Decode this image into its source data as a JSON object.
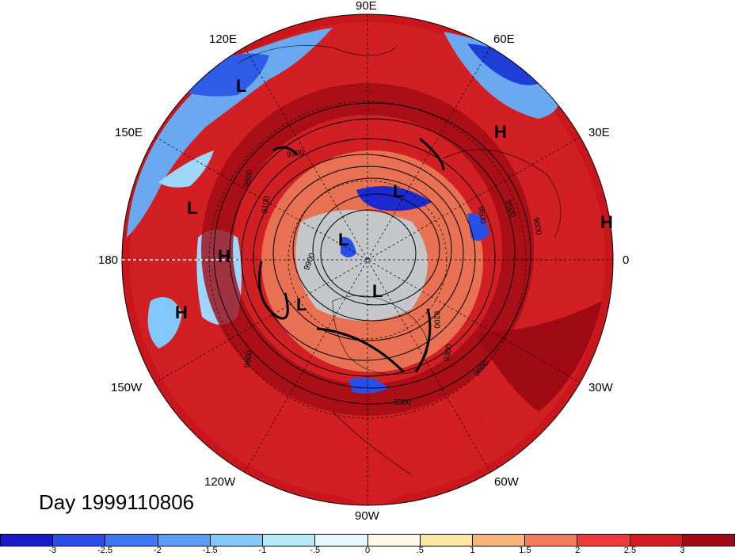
{
  "title": "Day 1999110806",
  "longitude_labels": {
    "n90e": "90E",
    "n60e": "60E",
    "n30e": "30E",
    "n0": "0",
    "n30w": "30W",
    "n60w": "60W",
    "n90w": "90W",
    "n120w": "120W",
    "n150w": "150W",
    "n180": "180",
    "n150e": "150E",
    "n120e": "120E"
  },
  "pressure_systems": [
    {
      "label": "L"
    },
    {
      "label": "H"
    },
    {
      "label": "L"
    },
    {
      "label": "H"
    },
    {
      "label": "H"
    },
    {
      "label": "H"
    },
    {
      "label": "L"
    },
    {
      "label": "L"
    },
    {
      "label": "L"
    },
    {
      "label": "L"
    }
  ],
  "contour_labels": [
    "9300",
    "9100",
    "9500",
    "9600",
    "9500",
    "9600",
    "9200",
    "9300",
    "9600",
    "9500",
    "9600",
    "9900"
  ],
  "colorbar": {
    "colors": [
      "#1a1ac8",
      "#2850e6",
      "#3c78f0",
      "#5a9ef5",
      "#82c8fa",
      "#b4ecfc",
      "#e6f8ff",
      "#fffae6",
      "#fde6a0",
      "#f9b478",
      "#f57c5a",
      "#ec3c37",
      "#d21e23",
      "#a00a14"
    ],
    "ticks": [
      "-3",
      "-2.5",
      "-2",
      "-1.5",
      "-1",
      "-.5",
      "0",
      ".5",
      "1",
      "1.5",
      "2",
      "2.5",
      "3"
    ]
  }
}
